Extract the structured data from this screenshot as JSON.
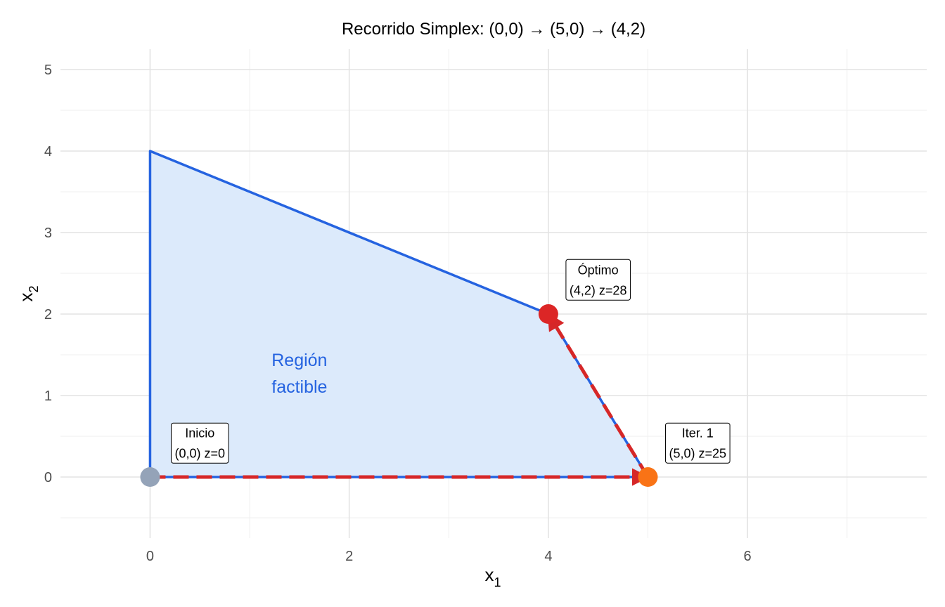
{
  "chart_data": {
    "type": "line",
    "title": "Recorrido Simplex: (0,0)  →  (5,0)  →  (4,2)",
    "xlabel": "x",
    "xlabel_sub": "1",
    "ylabel": "x",
    "ylabel_sub": "2",
    "xlim": [
      -0.9,
      7.8
    ],
    "ylim": [
      -0.75,
      5.25
    ],
    "x_major_ticks": [
      0,
      2,
      4,
      6
    ],
    "x_tick_labels": [
      "0",
      "2",
      "4",
      "6"
    ],
    "x_minor_ticks": [
      1,
      3,
      5,
      7
    ],
    "y_major_ticks": [
      0,
      1,
      2,
      3,
      4,
      5
    ],
    "y_tick_labels": [
      "0",
      "1",
      "2",
      "3",
      "4",
      "5"
    ],
    "y_minor_ticks": [
      -0.5,
      0.5,
      1.5,
      2.5,
      3.5,
      4.5
    ],
    "grid": true,
    "feasible_region": {
      "vertices": [
        [
          0,
          0
        ],
        [
          5,
          0
        ],
        [
          4,
          2
        ],
        [
          0,
          4
        ]
      ],
      "label_lines": [
        "Región",
        "factible"
      ],
      "label_at": [
        1.5,
        1.2
      ],
      "fill": "#dceafb",
      "edge": "#2563e0"
    },
    "path": {
      "points": [
        [
          0,
          0
        ],
        [
          5,
          0
        ],
        [
          4,
          2
        ]
      ],
      "color": "#d62728",
      "style": "dashed",
      "arrow": true
    },
    "points": [
      {
        "x": 0,
        "y": 0,
        "color": "#94a3b8",
        "label_lines": [
          "Inicio",
          "(0,0) z=0"
        ],
        "label_at": [
          0.5,
          0.42
        ]
      },
      {
        "x": 5,
        "y": 0,
        "color": "#f97316",
        "label_lines": [
          "Iter. 1",
          "(5,0) z=25"
        ],
        "label_at": [
          5.5,
          0.42
        ]
      },
      {
        "x": 4,
        "y": 2,
        "color": "#dc2626",
        "label_lines": [
          "Óptimo",
          "(4,2) z=28"
        ],
        "label_at": [
          4.5,
          2.42
        ]
      }
    ]
  }
}
